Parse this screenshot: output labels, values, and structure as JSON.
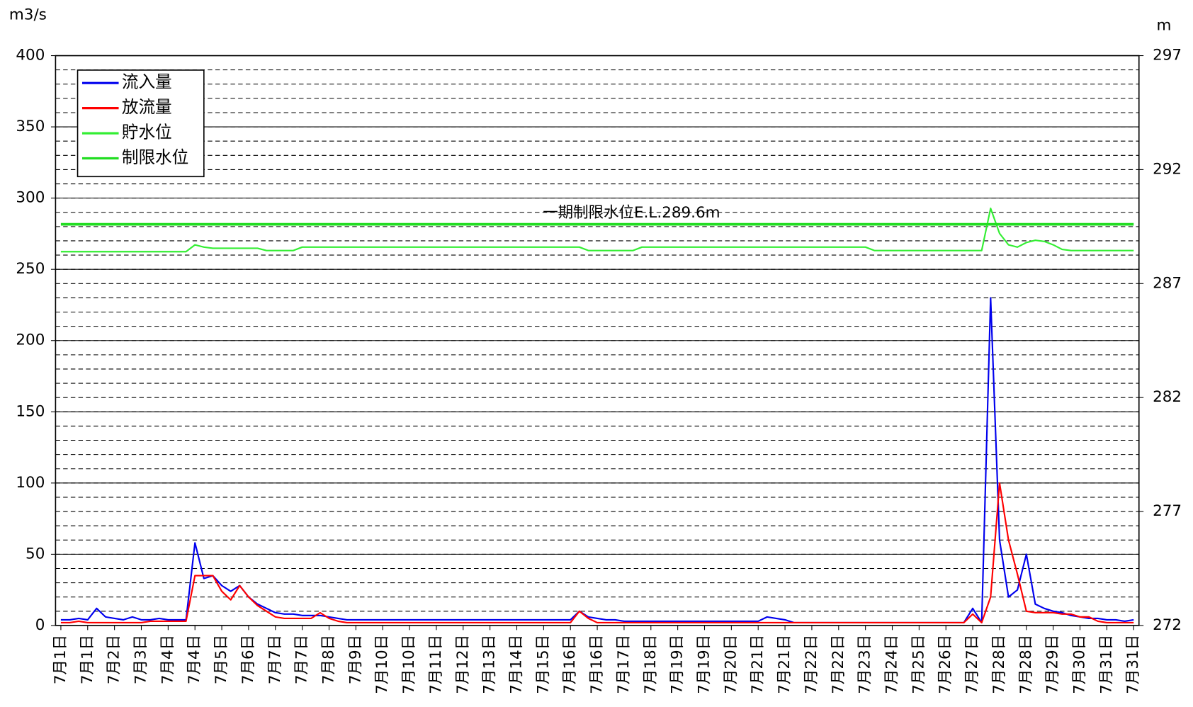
{
  "chart_data": {
    "type": "line",
    "y_label": "m3/s",
    "y2_label": "m",
    "annotation": "一期制限水位E.L.289.6m",
    "categories": [
      "7月1日",
      null,
      null,
      "7月1日",
      null,
      null,
      "7月2日",
      null,
      null,
      "7月3日",
      null,
      null,
      "7月4日",
      null,
      null,
      "7月4日",
      null,
      null,
      "7月5日",
      null,
      null,
      "7月6日",
      null,
      null,
      "7月7日",
      null,
      null,
      "7月7日",
      null,
      null,
      "7月8日",
      null,
      null,
      "7月9日",
      null,
      null,
      "7月10日",
      null,
      null,
      "7月10日",
      null,
      null,
      "7月11日",
      null,
      null,
      "7月12日",
      null,
      null,
      "7月13日",
      null,
      null,
      "7月14日",
      null,
      null,
      "7月15日",
      null,
      null,
      "7月16日",
      null,
      null,
      "7月16日",
      null,
      null,
      "7月17日",
      null,
      null,
      "7月18日",
      null,
      null,
      "7月19日",
      null,
      null,
      "7月19日",
      null,
      null,
      "7月20日",
      null,
      null,
      "7月21日",
      null,
      null,
      "7月21日",
      null,
      null,
      "7月22日",
      null,
      null,
      "7月22日",
      null,
      null,
      "7月23日",
      null,
      null,
      "7月24日",
      null,
      null,
      "7月25日",
      null,
      null,
      "7月26日",
      null,
      null,
      "7月27日",
      null,
      null,
      "7月28日",
      null,
      null,
      "7月28日",
      null,
      null,
      "7月29日",
      null,
      null,
      "7月30日",
      null,
      null,
      "7月31日",
      null,
      null,
      "7月31日"
    ],
    "series": [
      {
        "name": "流入量",
        "color": "#0000ee",
        "width": 2,
        "values": [
          4,
          4,
          5,
          4,
          12,
          6,
          5,
          4,
          6,
          4,
          4,
          5,
          4,
          4,
          4,
          58,
          33,
          35,
          28,
          24,
          28,
          20,
          15,
          12,
          9,
          8,
          8,
          7,
          7,
          7,
          6,
          5,
          4,
          4,
          4,
          4,
          4,
          4,
          4,
          4,
          4,
          4,
          4,
          4,
          4,
          4,
          4,
          4,
          4,
          4,
          4,
          4,
          4,
          4,
          4,
          4,
          4,
          4,
          10,
          6,
          5,
          4,
          4,
          3,
          3,
          3,
          3,
          3,
          3,
          3,
          3,
          3,
          3,
          3,
          3,
          3,
          3,
          3,
          3,
          6,
          5,
          4,
          2,
          2,
          2,
          2,
          2,
          2,
          2,
          2,
          2,
          2,
          2,
          2,
          2,
          2,
          2,
          2,
          2,
          2,
          2,
          2,
          12,
          2,
          230,
          60,
          20,
          25,
          50,
          15,
          12,
          10,
          9,
          7,
          6,
          5,
          5,
          4,
          4,
          3,
          4
        ]
      },
      {
        "name": "放流量",
        "color": "#ff0000",
        "width": 2,
        "values": [
          2,
          2,
          3,
          2,
          2,
          2,
          2,
          2,
          2,
          2,
          3,
          3,
          3,
          3,
          3,
          35,
          35,
          35,
          24,
          18,
          28,
          20,
          14,
          10,
          6,
          5,
          5,
          5,
          5,
          9,
          5,
          3,
          2,
          2,
          2,
          2,
          2,
          2,
          2,
          2,
          2,
          2,
          2,
          2,
          2,
          2,
          2,
          2,
          2,
          2,
          2,
          2,
          2,
          2,
          2,
          2,
          2,
          2,
          10,
          5,
          2,
          2,
          2,
          2,
          2,
          2,
          2,
          2,
          2,
          2,
          2,
          2,
          2,
          2,
          2,
          2,
          2,
          2,
          2,
          2,
          2,
          2,
          2,
          2,
          2,
          2,
          2,
          2,
          2,
          2,
          2,
          2,
          2,
          2,
          2,
          2,
          2,
          2,
          2,
          2,
          2,
          2,
          8,
          2,
          20,
          100,
          60,
          36,
          10,
          9,
          9,
          9,
          8,
          8,
          6,
          6,
          3,
          2,
          2,
          2,
          2
        ]
      },
      {
        "name": "貯水位",
        "color": "#33ee33",
        "width": 2,
        "axis": "y2",
        "values": [
          288.4,
          288.4,
          288.4,
          288.4,
          288.4,
          288.4,
          288.4,
          288.4,
          288.4,
          288.4,
          288.4,
          288.4,
          288.4,
          288.4,
          288.4,
          288.7,
          288.6,
          288.55,
          288.55,
          288.55,
          288.55,
          288.55,
          288.55,
          288.45,
          288.45,
          288.45,
          288.45,
          288.6,
          288.6,
          288.6,
          288.6,
          288.6,
          288.6,
          288.6,
          288.6,
          288.6,
          288.6,
          288.6,
          288.6,
          288.6,
          288.6,
          288.6,
          288.6,
          288.6,
          288.6,
          288.6,
          288.6,
          288.6,
          288.6,
          288.6,
          288.6,
          288.6,
          288.6,
          288.6,
          288.6,
          288.6,
          288.6,
          288.6,
          288.6,
          288.45,
          288.45,
          288.45,
          288.45,
          288.45,
          288.45,
          288.6,
          288.6,
          288.6,
          288.6,
          288.6,
          288.6,
          288.6,
          288.6,
          288.6,
          288.6,
          288.6,
          288.6,
          288.6,
          288.6,
          288.6,
          288.6,
          288.6,
          288.6,
          288.6,
          288.6,
          288.6,
          288.6,
          288.6,
          288.6,
          288.6,
          288.6,
          288.45,
          288.45,
          288.45,
          288.45,
          288.45,
          288.45,
          288.45,
          288.45,
          288.45,
          288.45,
          288.45,
          288.45,
          288.45,
          290.3,
          289.2,
          288.7,
          288.6,
          288.8,
          288.9,
          288.85,
          288.7,
          288.5,
          288.45,
          288.45,
          288.45,
          288.45,
          288.45,
          288.45,
          288.45,
          288.45
        ]
      },
      {
        "name": "制限水位",
        "color": "#22dd22",
        "width": 3.5,
        "axis": "y2",
        "values": [
          289.6,
          289.6,
          289.6,
          289.6,
          289.6,
          289.6,
          289.6,
          289.6,
          289.6,
          289.6,
          289.6,
          289.6,
          289.6,
          289.6,
          289.6,
          289.6,
          289.6,
          289.6,
          289.6,
          289.6,
          289.6,
          289.6,
          289.6,
          289.6,
          289.6,
          289.6,
          289.6,
          289.6,
          289.6,
          289.6,
          289.6,
          289.6,
          289.6,
          289.6,
          289.6,
          289.6,
          289.6,
          289.6,
          289.6,
          289.6,
          289.6,
          289.6,
          289.6,
          289.6,
          289.6,
          289.6,
          289.6,
          289.6,
          289.6,
          289.6,
          289.6,
          289.6,
          289.6,
          289.6,
          289.6,
          289.6,
          289.6,
          289.6,
          289.6,
          289.6,
          289.6,
          289.6,
          289.6,
          289.6,
          289.6,
          289.6,
          289.6,
          289.6,
          289.6,
          289.6,
          289.6,
          289.6,
          289.6,
          289.6,
          289.6,
          289.6,
          289.6,
          289.6,
          289.6,
          289.6,
          289.6,
          289.6,
          289.6,
          289.6,
          289.6,
          289.6,
          289.6,
          289.6,
          289.6,
          289.6,
          289.6,
          289.6,
          289.6,
          289.6,
          289.6,
          289.6,
          289.6,
          289.6,
          289.6,
          289.6,
          289.6,
          289.6,
          289.6,
          289.6,
          289.6,
          289.6,
          289.6,
          289.6,
          289.6,
          289.6,
          289.6,
          289.6,
          289.6,
          289.6,
          289.6,
          289.6,
          289.6,
          289.6,
          289.6,
          289.6,
          289.6
        ]
      }
    ],
    "ylim": [
      0,
      400
    ],
    "yticks": [
      0,
      50,
      100,
      150,
      200,
      250,
      300,
      350,
      400
    ],
    "y2lim": [
      272,
      297
    ],
    "y2ticks": [
      272,
      277,
      282,
      287,
      292,
      297
    ],
    "grid": true,
    "minor_grid_step": 10,
    "legend": "upper left"
  }
}
